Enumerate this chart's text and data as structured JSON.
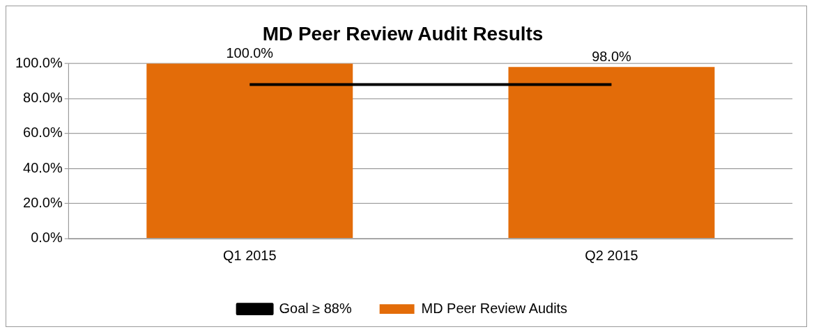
{
  "chart_data": {
    "type": "bar",
    "title": "MD Peer Review Audit Results",
    "categories": [
      "Q1 2015",
      "Q2 2015"
    ],
    "series": [
      {
        "name": "MD Peer Review Audits",
        "color": "#e36c09",
        "values": [
          100,
          98
        ],
        "value_labels": [
          "100.0%",
          "98.0%"
        ]
      },
      {
        "name": "Goal ≥ 88%",
        "type": "line",
        "color": "#000000",
        "values": [
          88,
          88
        ],
        "marker": "none"
      }
    ],
    "ylim": [
      0,
      100
    ],
    "yticks": [
      {
        "value": 0,
        "label": "0.0%"
      },
      {
        "value": 20,
        "label": "20.0%"
      },
      {
        "value": 40,
        "label": "40.0%"
      },
      {
        "value": 60,
        "label": "60.0%"
      },
      {
        "value": 80,
        "label": "80.0%"
      },
      {
        "value": 100,
        "label": "100.0%"
      }
    ],
    "grid": "y",
    "legend": "bottom"
  }
}
